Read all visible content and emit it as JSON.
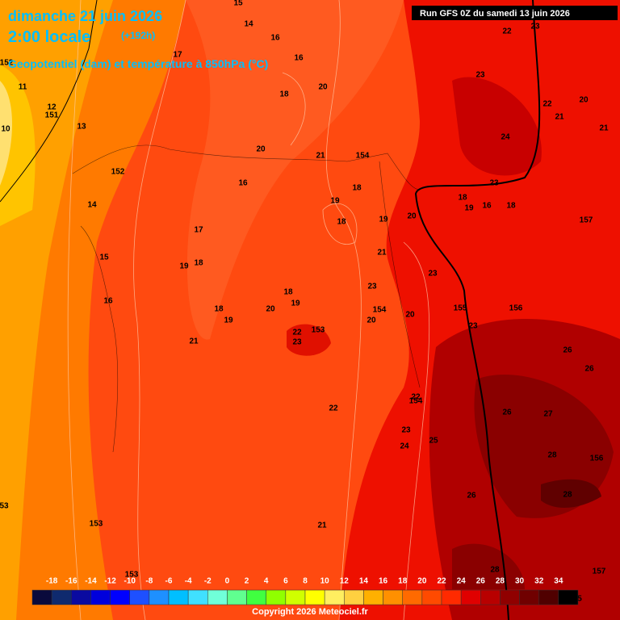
{
  "header": {
    "date": "dimanche 21 juin 2026",
    "time": "2:00 locale",
    "lead": "(+192h)",
    "subtitle": "Geopotentiel (dam) et température à 850hPa (°C)",
    "run": "Run GFS 0Z du samedi 13 juin 2026"
  },
  "map_labels": [
    "15",
    "14",
    "16",
    "17",
    "16",
    "20",
    "18",
    "11",
    "12",
    "151",
    "10",
    "13",
    "152",
    "20",
    "21",
    "154",
    "152",
    "16",
    "18",
    "19",
    "18",
    "19",
    "20",
    "14",
    "17",
    "15",
    "19",
    "18",
    "21",
    "23",
    "16",
    "18",
    "19",
    "20",
    "23",
    "154",
    "155",
    "156",
    "18",
    "19",
    "20",
    "20",
    "22",
    "153",
    "23",
    "23",
    "21",
    "22",
    "23",
    "23",
    "22",
    "21",
    "20",
    "21",
    "24",
    "23",
    "18",
    "19",
    "16",
    "18",
    "157",
    "26",
    "26",
    "22",
    "154",
    "22",
    "26",
    "27",
    "23",
    "25",
    "24",
    "28",
    "156",
    "26",
    "28",
    "53",
    "153",
    "21",
    "28",
    "157",
    "153",
    "5"
  ],
  "colorbar": {
    "labels": [
      -18,
      -16,
      -14,
      -12,
      -10,
      -8,
      -6,
      -4,
      -2,
      0,
      2,
      4,
      6,
      8,
      10,
      12,
      14,
      16,
      18,
      20,
      22,
      24,
      26,
      28,
      30,
      32,
      34
    ],
    "colors": [
      "#0a0a3c",
      "#0f2a6e",
      "#0a0aa0",
      "#0000dc",
      "#0000ff",
      "#1e50ff",
      "#1e90ff",
      "#00bfff",
      "#40e0ff",
      "#70ffd8",
      "#60ff90",
      "#40ff40",
      "#90ff00",
      "#d0ff00",
      "#ffff00",
      "#ffee60",
      "#ffd040",
      "#ffb000",
      "#ff9000",
      "#ff6a00",
      "#ff4a00",
      "#ff2a00",
      "#e00000",
      "#b80000",
      "#900000",
      "#700000",
      "#500000",
      "#000000"
    ]
  },
  "copyright": "Copyright 2026 Meteociel.fr"
}
